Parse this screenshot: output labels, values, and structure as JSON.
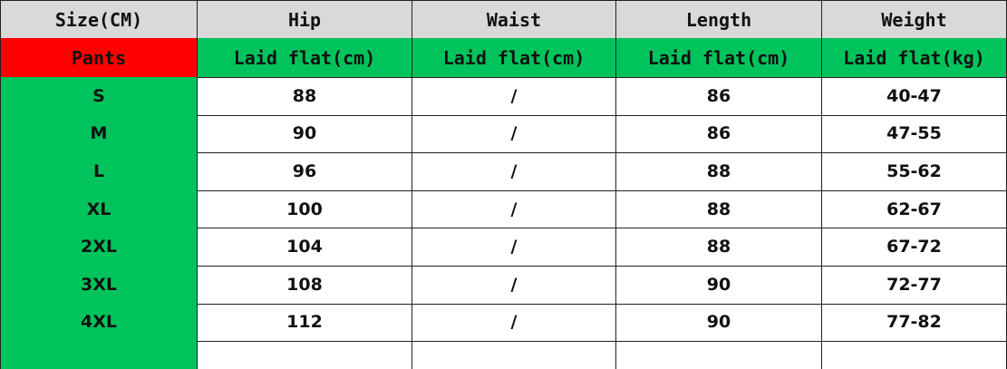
{
  "table": {
    "header": [
      "Size(CM)",
      "Hip",
      "Waist",
      "Length",
      "Weight"
    ],
    "subheader": [
      "Pants",
      "Laid flat(cm)",
      "Laid flat(cm)",
      "Laid flat(cm)",
      "Laid flat(kg)"
    ],
    "rows": [
      [
        "S",
        "88",
        "/",
        "86",
        "40-47"
      ],
      [
        "M",
        "90",
        "/",
        "86",
        "47-55"
      ],
      [
        "L",
        "96",
        "/",
        "88",
        "55-62"
      ],
      [
        "XL",
        "100",
        "/",
        "88",
        "62-67"
      ],
      [
        "2XL",
        "104",
        "/",
        "88",
        "67-72"
      ],
      [
        "3XL",
        "108",
        "/",
        "90",
        "72-77"
      ],
      [
        "4XL",
        "112",
        "/",
        "90",
        "77-82"
      ]
    ]
  }
}
